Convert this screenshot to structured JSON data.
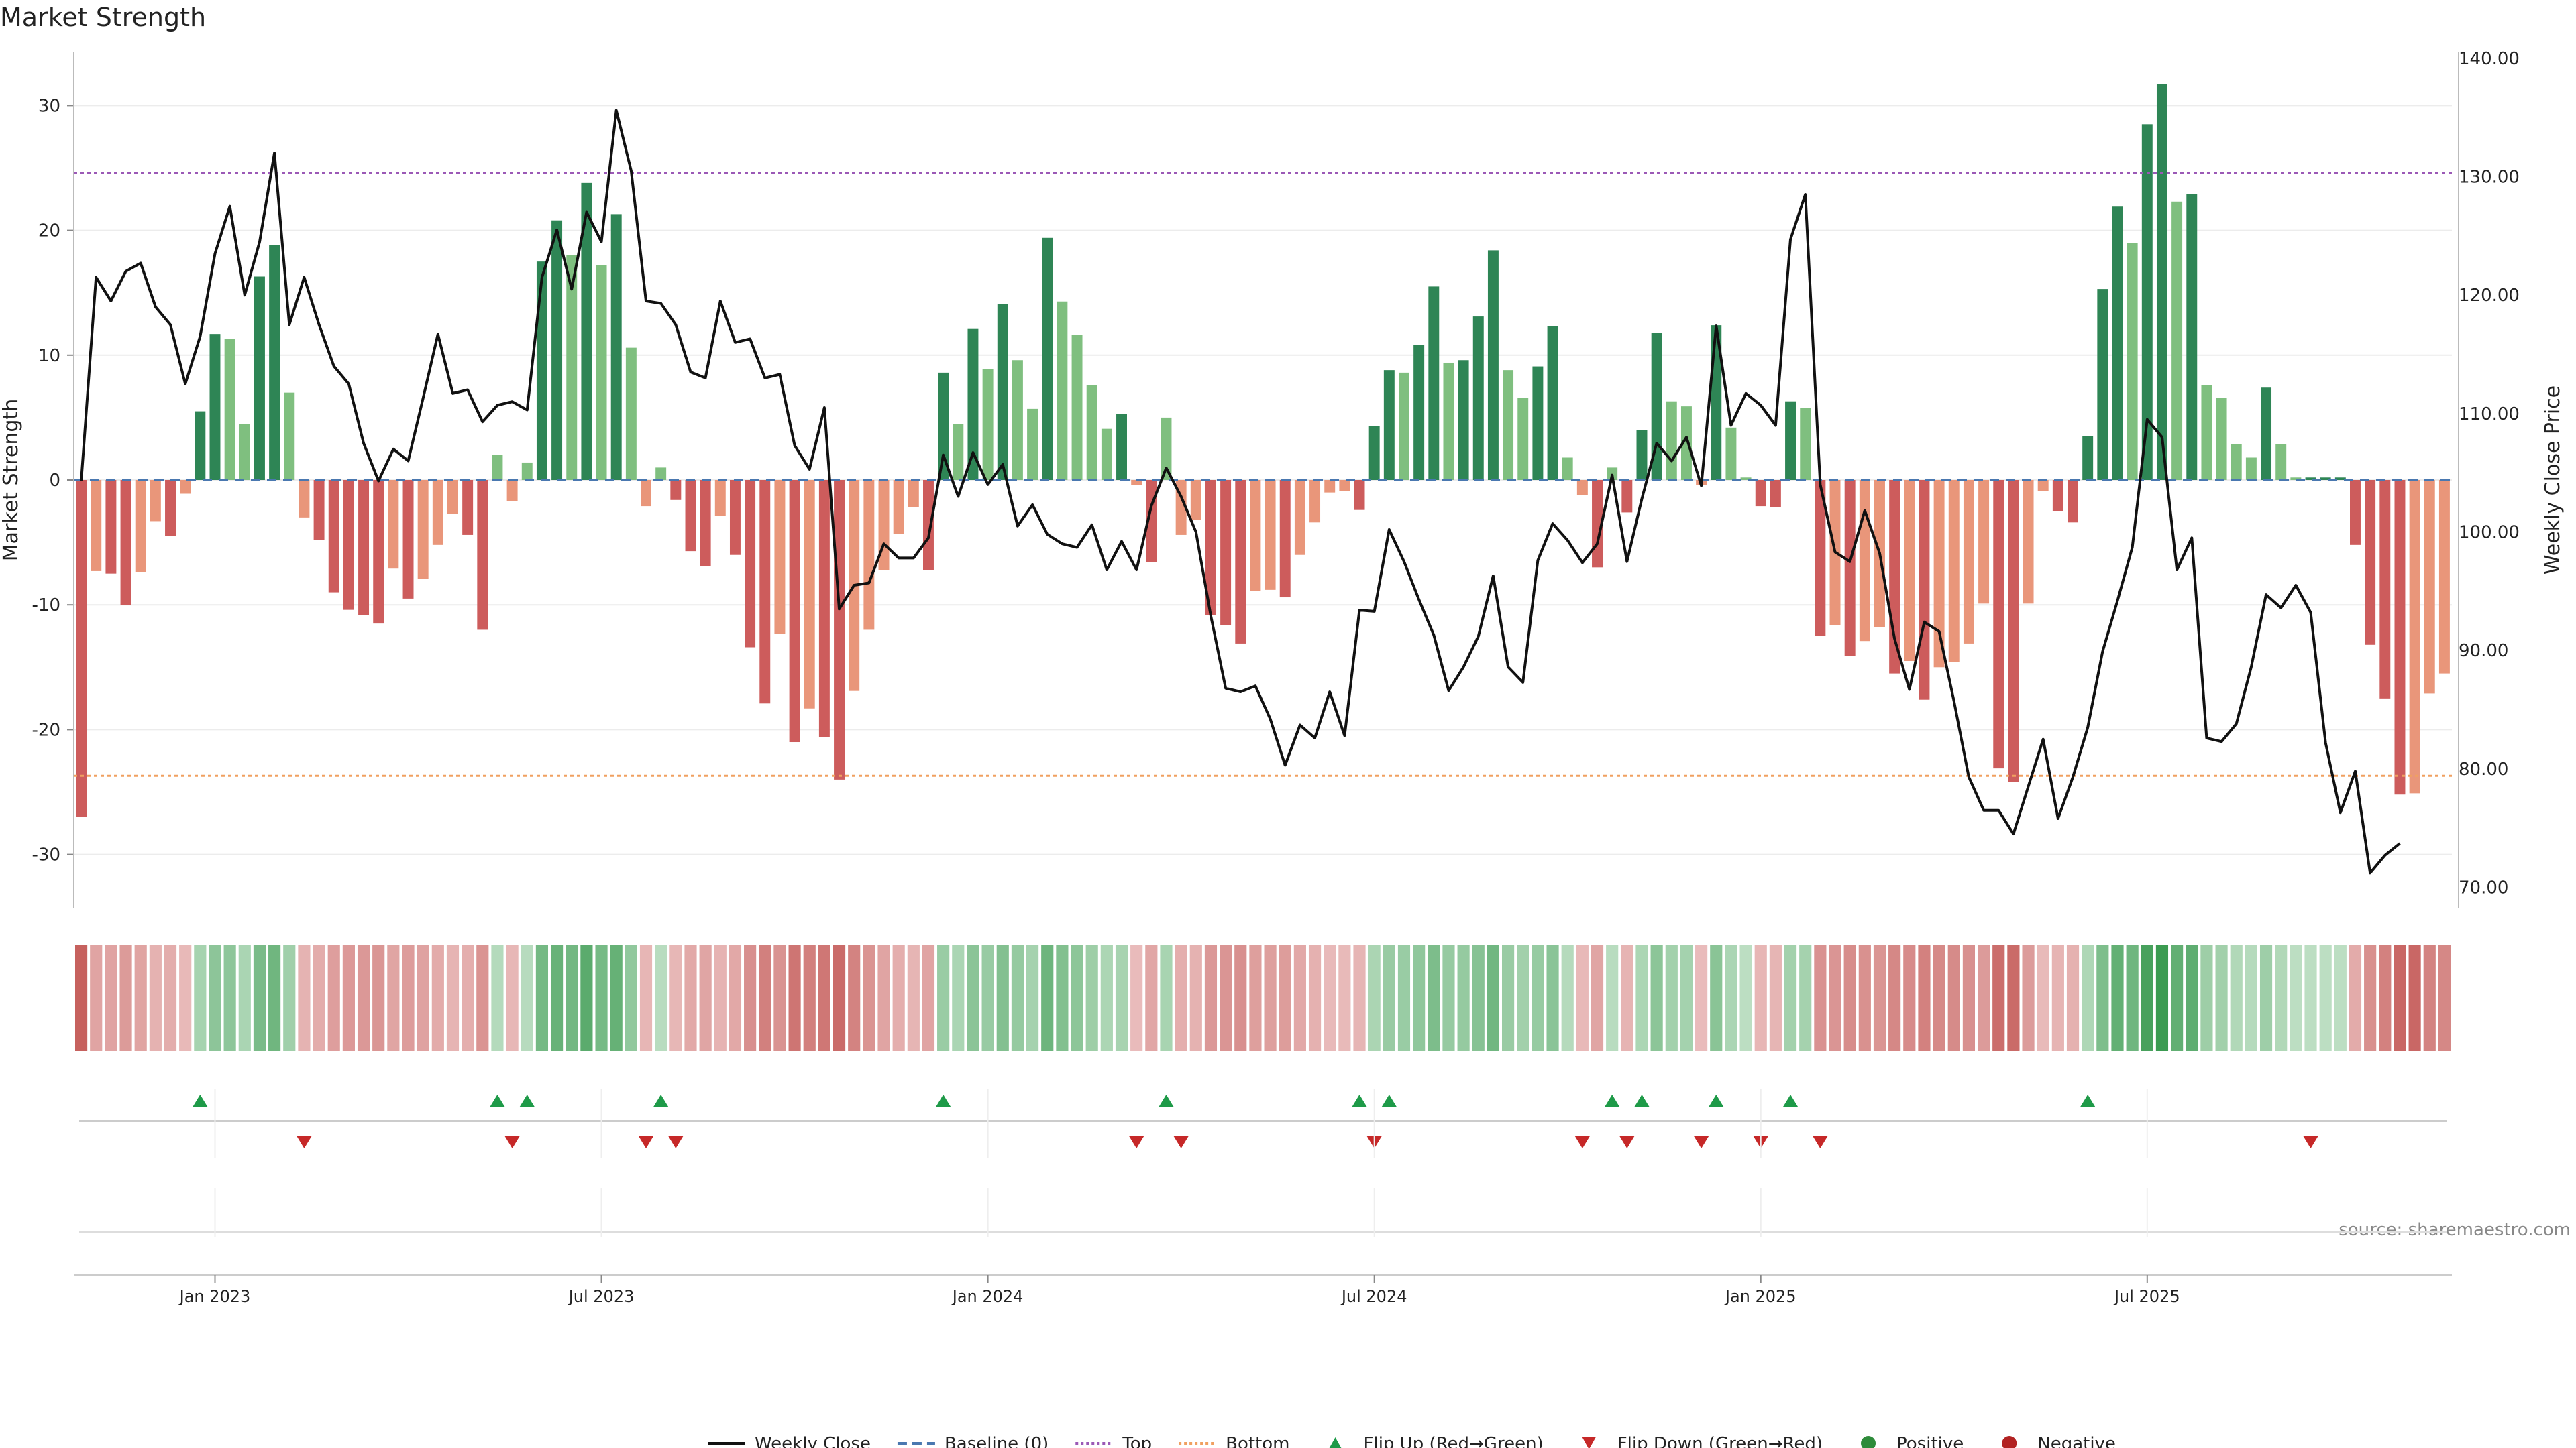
{
  "chart_data": {
    "type": "bar",
    "title": "Market Strength",
    "ylabel": "Market Strength",
    "y2label": "Weekly Close Price",
    "source": "source: sharemaestro.com",
    "ylim": [
      -34,
      34
    ],
    "y2lim": [
      68.5,
      140.5
    ],
    "yticks": [
      -30,
      -20,
      -10,
      0,
      10,
      20,
      30
    ],
    "y2ticks": [
      "70.00",
      "80.00",
      "90.00",
      "100.00",
      "110.00",
      "120.00",
      "130.00",
      "140.00"
    ],
    "xticks": [
      {
        "label": "Jan 2023",
        "week": 9.5
      },
      {
        "label": "Jul 2023",
        "week": 35.5
      },
      {
        "label": "Jan 2024",
        "week": 61.5
      },
      {
        "label": "Jul 2024",
        "week": 87.5
      },
      {
        "label": "Jan 2025",
        "week": 113.5
      },
      {
        "label": "Jul 2025",
        "week": 139.5
      }
    ],
    "top_threshold": 24.6,
    "bottom_threshold": -23.7,
    "strength": [
      -27,
      -7.3,
      -7.5,
      -10,
      -7.4,
      -3.3,
      -4.5,
      -1.1,
      5.5,
      11.7,
      11.3,
      4.5,
      16.3,
      18.8,
      7.0,
      -3,
      -4.8,
      -9,
      -10.4,
      -10.8,
      -11.5,
      -7.1,
      -9.5,
      -7.9,
      -5.2,
      -2.7,
      -4.4,
      -12,
      2,
      -1.7,
      1.4,
      17.5,
      20.8,
      18,
      23.8,
      17.2,
      21.3,
      10.6,
      -2.1,
      1,
      -1.6,
      -5.7,
      -6.9,
      -2.9,
      -6,
      -13.4,
      -17.9,
      -12.3,
      -21,
      -18.3,
      -20.6,
      -24,
      -16.9,
      -12,
      -7.2,
      -4.3,
      -2.2,
      -7.2,
      8.6,
      4.5,
      12.1,
      8.9,
      14.1,
      9.6,
      5.7,
      19.4,
      14.3,
      11.6,
      7.6,
      4.1,
      5.3,
      -0.4,
      -6.6,
      5,
      -4.4,
      -3.2,
      -10.8,
      -11.6,
      -13.1,
      -8.9,
      -8.8,
      -9.4,
      -6,
      -3.4,
      -1,
      -0.9,
      -2.4,
      4.3,
      8.8,
      8.6,
      10.8,
      15.5,
      9.4,
      9.6,
      13.1,
      18.4,
      8.8,
      6.6,
      9.1,
      12.3,
      1.8,
      -1.2,
      -7,
      1.0,
      -2.6,
      4,
      11.8,
      6.3,
      5.9,
      -0.4,
      12.4,
      4.2,
      0.2,
      -2.1,
      -2.2,
      6.3,
      5.8,
      -12.5,
      -11.6,
      -14.1,
      -12.9,
      -11.8,
      -15.5,
      -14.5,
      -17.6,
      -15,
      -14.6,
      -13.1,
      -9.9,
      -23.1,
      -24.2,
      -9.9,
      -0.9,
      -2.5,
      -3.4,
      3.5,
      15.3,
      21.9,
      19,
      28.5,
      31.7,
      22.3,
      22.9,
      7.6,
      6.6,
      2.9,
      1.8,
      7.4,
      2.9,
      0.2,
      0.2,
      0.2,
      0.2,
      -5.2,
      -13.2,
      -17.5,
      -25.2,
      -25.1,
      -17.1,
      -15.5
    ],
    "close": [
      104.3,
      121.5,
      119.5,
      122,
      122.7,
      119,
      117.5,
      112.5,
      116.5,
      123.5,
      127.5,
      120,
      124.5,
      132,
      117.5,
      121.5,
      117.5,
      114,
      112.5,
      107.5,
      104.3,
      107,
      106,
      111.3,
      116.7,
      111.7,
      112,
      109.3,
      110.7,
      111,
      110.3,
      121.5,
      125.5,
      120.5,
      127,
      124.5,
      135.6,
      130.5,
      119.5,
      119.3,
      117.5,
      113.5,
      113,
      119.5,
      116,
      116.3,
      113,
      113.3,
      107.3,
      105.3,
      110.5,
      93.5,
      95.5,
      95.7,
      99,
      97.8,
      97.8,
      99.5,
      106.5,
      103,
      106.7,
      104,
      105.7,
      100.5,
      102.3,
      99.8,
      99,
      98.7,
      100.6,
      96.8,
      99.2,
      96.8,
      102.2,
      105.4,
      103,
      100,
      92.9,
      86.8,
      86.5,
      87,
      84.2,
      80.3,
      83.7,
      82.6,
      86.5,
      82.8,
      93.4,
      93.3,
      100.2,
      97.5,
      94.3,
      91.3,
      86.6,
      88.6,
      91.2,
      96.3,
      88.6,
      87.3,
      97.6,
      100.7,
      99.3,
      97.4,
      99,
      104.8,
      97.5,
      102.8,
      107.5,
      106,
      108,
      103.9,
      117.4,
      109,
      111.7,
      110.7,
      109,
      124.7,
      128.5,
      104,
      98.3,
      97.5,
      101.8,
      98.2,
      91,
      86.7,
      92.4,
      91.6,
      85.7,
      79.3,
      76.5,
      76.5,
      74.5,
      78.5,
      82.5,
      75.8,
      79.3,
      83.5,
      89.9,
      94.2,
      98.7,
      109.5,
      108,
      96.8,
      99.5,
      82.6,
      82.3,
      83.8,
      88.6,
      94.7,
      93.6,
      95.5,
      93.2,
      82.2,
      76.3,
      79.8,
      71.2,
      72.7,
      73.7
    ],
    "flips_up": [
      8,
      28,
      30,
      39,
      58,
      73,
      86,
      88,
      103,
      105,
      110,
      115,
      135
    ],
    "flips_down": [
      15,
      29,
      38,
      40,
      71,
      74,
      87,
      101,
      104,
      109,
      113,
      117,
      150
    ],
    "legend": [
      {
        "label": "Weekly Close",
        "icon": "line-solid",
        "color": "#111111"
      },
      {
        "label": "Baseline (0)",
        "icon": "line-dashed",
        "color": "#4a78b0"
      },
      {
        "label": "Top",
        "icon": "line-dotted",
        "color": "#9b59b6"
      },
      {
        "label": "Bottom",
        "icon": "line-dotted",
        "color": "#f0a060"
      },
      {
        "label": "Flip Up (Red→Green)",
        "icon": "triangle-up",
        "color": "#1e9a48"
      },
      {
        "label": "Flip Down (Green→Red)",
        "icon": "triangle-down",
        "color": "#c62828"
      },
      {
        "label": "Positive",
        "icon": "dot",
        "color": "#2e8b3a"
      },
      {
        "label": "Negative",
        "icon": "dot",
        "color": "#b22222"
      }
    ],
    "grid": true,
    "legend_position": "bottom-center"
  },
  "colors": {
    "strong_green": "#2e8555",
    "light_green": "#7fbf7f",
    "strong_red": "#cd5c5c",
    "light_red": "#e9967a",
    "price_line": "#111111",
    "top_line": "#9b59b6",
    "bottom_line": "#f0a060",
    "baseline": "#4a78b0"
  }
}
